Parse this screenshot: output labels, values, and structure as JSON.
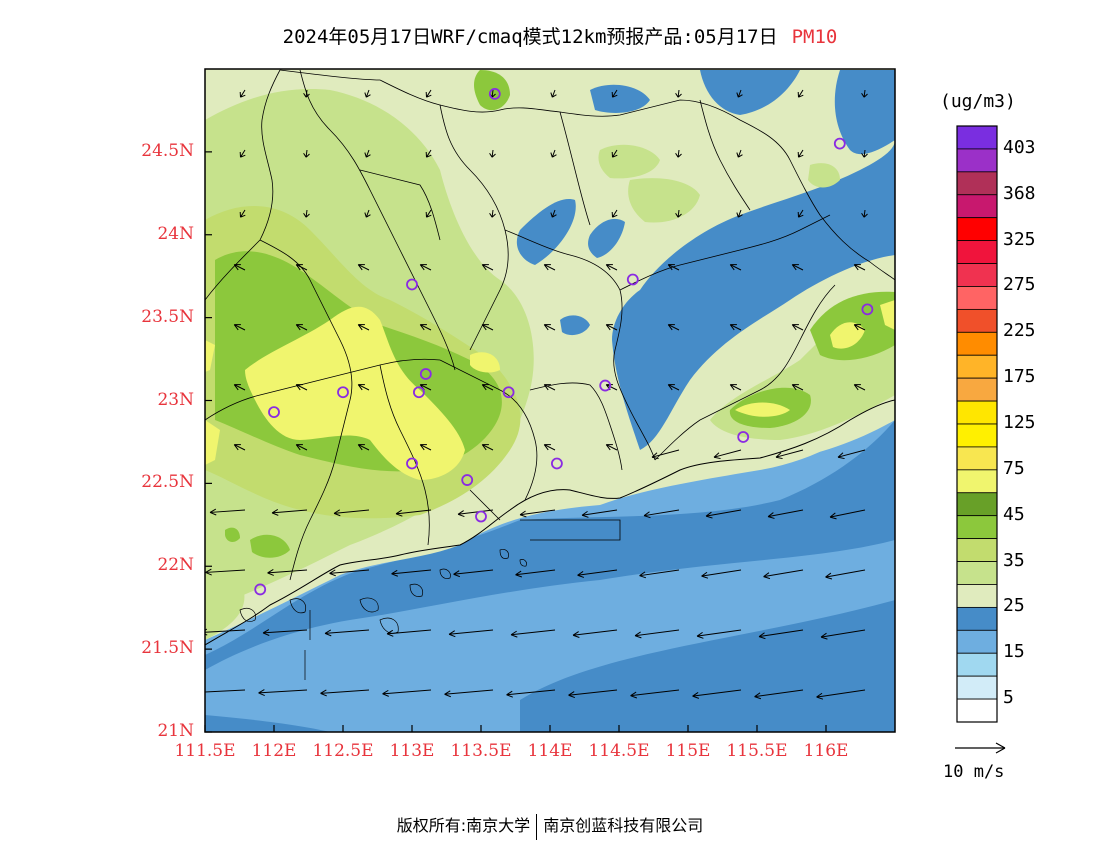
{
  "title": {
    "main": "2024年05月17日WRF/cmaq模式12km预报产品:05月17日",
    "pollutant": "PM10"
  },
  "axes": {
    "lat_ticks": [
      "24.5N",
      "24N",
      "23.5N",
      "23N",
      "22.5N",
      "22N",
      "21.5N",
      "21N"
    ],
    "lat_values": [
      24.5,
      24.0,
      23.5,
      23.0,
      22.5,
      22.0,
      21.5,
      21.0
    ],
    "lon_ticks": [
      "111.5E",
      "112E",
      "112.5E",
      "113E",
      "113.5E",
      "114E",
      "114.5E",
      "115E",
      "115.5E",
      "116E"
    ],
    "lon_values": [
      111.5,
      112.0,
      112.5,
      113.0,
      113.5,
      114.0,
      114.5,
      115.0,
      115.5,
      116.0
    ],
    "lat_range": [
      21.0,
      25.0
    ],
    "lon_range": [
      111.5,
      116.5
    ]
  },
  "colorbar": {
    "units": "(ug/m3)",
    "labels": [
      "403",
      "368",
      "325",
      "275",
      "225",
      "175",
      "125",
      "75",
      "45",
      "35",
      "25",
      "15",
      "5"
    ],
    "colors": [
      "#7a2ee0",
      "#9b30c8",
      "#b03058",
      "#c8186e",
      "#ff0000",
      "#f0143c",
      "#f03250",
      "#ff6464",
      "#f0502a",
      "#ff8c00",
      "#ffb428",
      "#f8a840",
      "#ffe600",
      "#fff000",
      "#f8e650",
      "#f0f56e",
      "#68a028",
      "#8cc83c",
      "#c2dc6e",
      "#c6e28c",
      "#e0ebbe",
      "#468cc8",
      "#6eaee0",
      "#a0d8f0",
      "#d2ecf8",
      "#ffffff"
    ]
  },
  "wind_reference": {
    "label": "10 m/s"
  },
  "footer": {
    "copyright_left": "版权所有:南京大学",
    "copyright_right": "南京创蓝科技有限公司"
  },
  "sites": [
    {
      "lon": 113.6,
      "lat": 24.85
    },
    {
      "lon": 116.1,
      "lat": 24.55
    },
    {
      "lon": 113.0,
      "lat": 23.7
    },
    {
      "lon": 114.6,
      "lat": 23.73
    },
    {
      "lon": 116.3,
      "lat": 23.55
    },
    {
      "lon": 112.5,
      "lat": 23.05
    },
    {
      "lon": 112.0,
      "lat": 22.93
    },
    {
      "lon": 113.05,
      "lat": 23.05
    },
    {
      "lon": 113.1,
      "lat": 23.16
    },
    {
      "lon": 113.7,
      "lat": 23.05
    },
    {
      "lon": 114.4,
      "lat": 23.09
    },
    {
      "lon": 115.4,
      "lat": 22.78
    },
    {
      "lon": 113.0,
      "lat": 22.62
    },
    {
      "lon": 113.4,
      "lat": 22.52
    },
    {
      "lon": 114.05,
      "lat": 22.62
    },
    {
      "lon": 113.5,
      "lat": 22.3
    },
    {
      "lon": 111.9,
      "lat": 21.86
    }
  ]
}
